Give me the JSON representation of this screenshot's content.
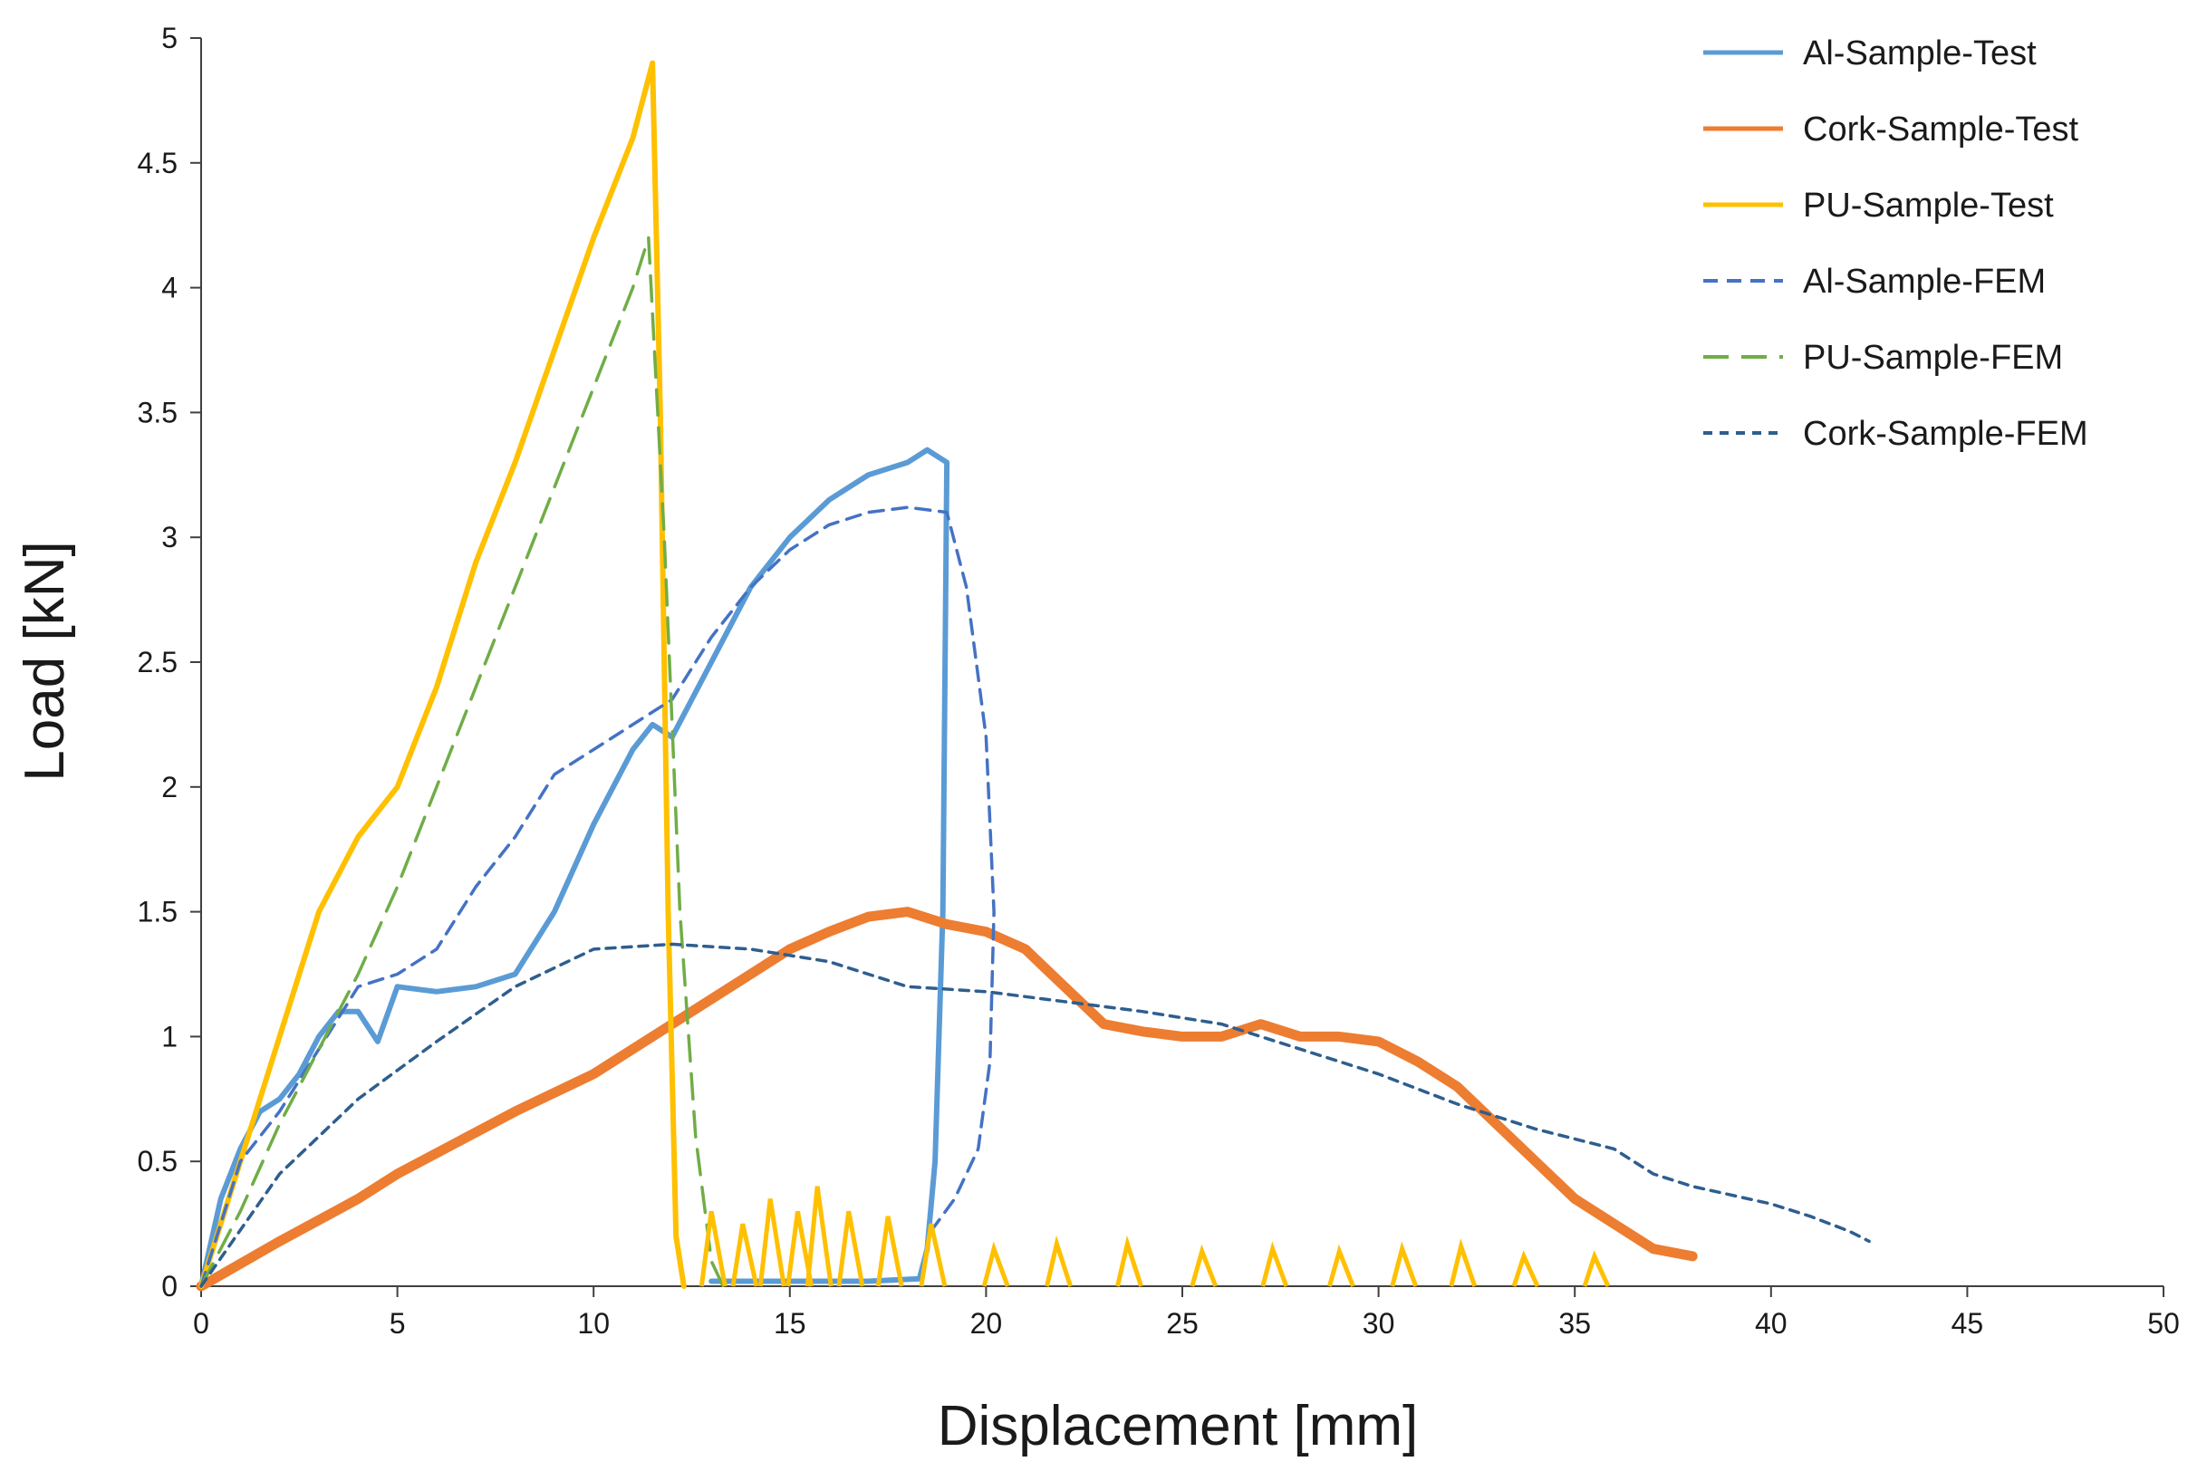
{
  "chart_data": {
    "type": "line",
    "title": "",
    "xlabel": "Displacement [mm]",
    "ylabel": "Load [kN]",
    "xlim": [
      0,
      50
    ],
    "ylim": [
      0,
      5
    ],
    "xticks": [
      0,
      5,
      10,
      15,
      20,
      25,
      30,
      35,
      40,
      45,
      50
    ],
    "yticks": [
      0,
      0.5,
      1,
      1.5,
      2,
      2.5,
      3,
      3.5,
      4,
      4.5,
      5
    ],
    "ytick_labels": [
      "0",
      "0.5",
      "1",
      "1.5",
      "2",
      "2.5",
      "3",
      "3.5",
      "4",
      "4.5",
      "5"
    ],
    "grid": false,
    "legend_position": "top-right",
    "series": [
      {
        "name": "Al-Sample-Test",
        "color": "#5b9bd5",
        "style": "solid",
        "x": [
          0,
          0.5,
          1,
          1.5,
          2,
          2.5,
          3,
          3.5,
          4,
          4.5,
          5,
          6,
          7,
          8,
          9,
          10,
          11,
          11.5,
          12,
          13,
          14,
          15,
          16,
          17,
          18,
          18.5,
          19,
          18.9,
          18.7,
          18.5,
          18.3,
          17,
          15,
          13
        ],
        "y": [
          0,
          0.35,
          0.55,
          0.7,
          0.75,
          0.85,
          1.0,
          1.1,
          1.1,
          0.98,
          1.2,
          1.18,
          1.2,
          1.25,
          1.5,
          1.85,
          2.15,
          2.25,
          2.2,
          2.5,
          2.8,
          3.0,
          3.15,
          3.25,
          3.3,
          3.35,
          3.3,
          1.5,
          0.5,
          0.15,
          0.03,
          0.02,
          0.02,
          0.02
        ]
      },
      {
        "name": "Cork-Sample-Test",
        "color": "#ed7d31",
        "style": "solid",
        "x": [
          0,
          2,
          4,
          5,
          8,
          10,
          12,
          14,
          15,
          16,
          17,
          18,
          19,
          20,
          21,
          22,
          23,
          24,
          25,
          26,
          27,
          28,
          29,
          30,
          31,
          32,
          33,
          34,
          35,
          36,
          37,
          38
        ],
        "y": [
          0,
          0.18,
          0.35,
          0.45,
          0.7,
          0.85,
          1.05,
          1.25,
          1.35,
          1.42,
          1.48,
          1.5,
          1.45,
          1.42,
          1.35,
          1.2,
          1.05,
          1.02,
          1.0,
          1.0,
          1.05,
          1.0,
          1.0,
          0.98,
          0.9,
          0.8,
          0.65,
          0.5,
          0.35,
          0.25,
          0.15,
          0.12
        ]
      },
      {
        "name": "PU-Sample-Test",
        "color": "#ffc000",
        "style": "solid",
        "x": [
          0,
          1,
          2,
          3,
          4,
          5,
          6,
          7,
          8,
          9,
          10,
          11,
          11.5,
          11.7,
          11.9,
          12.1,
          12.3
        ],
        "y": [
          0,
          0.5,
          1.0,
          1.5,
          1.8,
          2.0,
          2.4,
          2.9,
          3.3,
          3.75,
          4.2,
          4.6,
          4.9,
          3.5,
          1.5,
          0.2,
          0
        ]
      },
      {
        "name": "Al-Sample-FEM",
        "color": "#4472c4",
        "style": "dash",
        "x": [
          0,
          1,
          2,
          3,
          4,
          5,
          6,
          7,
          8,
          9,
          10,
          11,
          12,
          13,
          14,
          15,
          16,
          17,
          18,
          19,
          19.5,
          20,
          20.2,
          20.1,
          19.8,
          19.2,
          18.5
        ],
        "y": [
          0,
          0.5,
          0.7,
          0.95,
          1.2,
          1.25,
          1.35,
          1.6,
          1.8,
          2.05,
          2.15,
          2.25,
          2.35,
          2.6,
          2.8,
          2.95,
          3.05,
          3.1,
          3.12,
          3.1,
          2.8,
          2.2,
          1.5,
          0.9,
          0.55,
          0.35,
          0.2
        ]
      },
      {
        "name": "PU-Sample-FEM",
        "color": "#70ad47",
        "style": "longdash",
        "x": [
          0,
          1,
          2,
          3,
          4,
          5,
          6,
          7,
          8,
          9,
          10,
          11,
          11.4,
          11.8,
          12.2,
          12.6,
          13.0,
          13.3
        ],
        "y": [
          0,
          0.3,
          0.65,
          0.95,
          1.25,
          1.6,
          2.0,
          2.4,
          2.8,
          3.2,
          3.6,
          4.0,
          4.2,
          3.0,
          1.5,
          0.6,
          0.1,
          0
        ]
      },
      {
        "name": "Cork-Sample-FEM",
        "color": "#2e5e8e",
        "style": "shortdash",
        "x": [
          0,
          2,
          4,
          6,
          8,
          10,
          12,
          14,
          16,
          18,
          20,
          22,
          24,
          26,
          28,
          30,
          32,
          34,
          36,
          37,
          38,
          40,
          41,
          42,
          42.5
        ],
        "y": [
          0,
          0.45,
          0.75,
          0.98,
          1.2,
          1.35,
          1.37,
          1.35,
          1.3,
          1.2,
          1.18,
          1.14,
          1.1,
          1.05,
          0.95,
          0.85,
          0.73,
          0.63,
          0.55,
          0.45,
          0.4,
          0.33,
          0.28,
          0.22,
          0.18
        ]
      }
    ],
    "noise_after_failure": {
      "series": "PU-Sample-Test",
      "spikes": [
        {
          "x": 13,
          "y": 0.3
        },
        {
          "x": 13.8,
          "y": 0.25
        },
        {
          "x": 14.5,
          "y": 0.35
        },
        {
          "x": 15.2,
          "y": 0.3
        },
        {
          "x": 15.7,
          "y": 0.4
        },
        {
          "x": 16.5,
          "y": 0.3
        },
        {
          "x": 17.5,
          "y": 0.28
        },
        {
          "x": 18.6,
          "y": 0.25
        },
        {
          "x": 20.2,
          "y": 0.15
        },
        {
          "x": 21.8,
          "y": 0.17
        },
        {
          "x": 23.6,
          "y": 0.17
        },
        {
          "x": 25.5,
          "y": 0.14
        },
        {
          "x": 27.3,
          "y": 0.15
        },
        {
          "x": 29.0,
          "y": 0.14
        },
        {
          "x": 30.6,
          "y": 0.15
        },
        {
          "x": 32.1,
          "y": 0.16
        },
        {
          "x": 33.7,
          "y": 0.12
        },
        {
          "x": 35.5,
          "y": 0.12
        }
      ]
    }
  }
}
